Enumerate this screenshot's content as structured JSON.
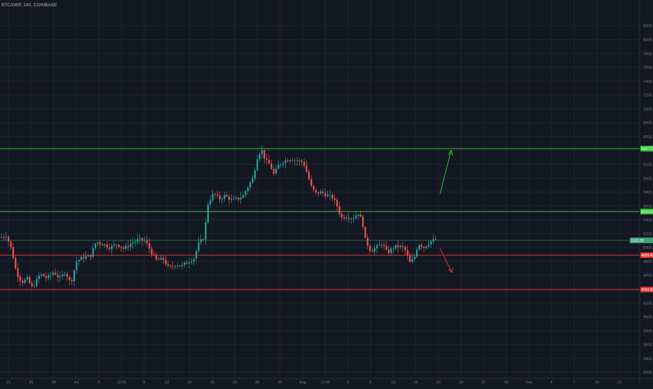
{
  "header": {
    "symbol_label": "BTC/GBP, 240, COINBASE"
  },
  "colors": {
    "background": "#131722",
    "grid": "#1f2433",
    "axis_text": "#787b86",
    "up": "#26a69a",
    "down": "#ef5350",
    "resistance": "#36c936",
    "support": "#e23333",
    "current_price": "#3fa37a"
  },
  "chart_data": {
    "type": "candlestick",
    "title": "BTC/GBP, 240, COINBASE",
    "ylim": [
      3050,
      8450
    ],
    "y_ticks": [
      3200,
      3400,
      3600,
      3800,
      4000,
      4200,
      4400,
      4600,
      4800,
      5000,
      5200,
      5400,
      5600,
      5800,
      6000,
      6200,
      6400,
      6600,
      6800,
      7000,
      7200,
      7400,
      7600,
      7800,
      8000,
      8200
    ],
    "x_ticks": [
      "21",
      "25",
      "28",
      "Jul",
      "5",
      "12:00",
      "9",
      "12",
      "16",
      "19",
      "23",
      "26",
      "30",
      "Aug",
      "12:00",
      "6",
      "9",
      "13",
      "16",
      "20",
      "23",
      "27",
      "30",
      "Sep",
      "4",
      "7",
      "10",
      "13"
    ],
    "grid": true,
    "approx_series": [
      {
        "t": 0,
        "p": 5150
      },
      {
        "t": 8,
        "p": 5180
      },
      {
        "t": 16,
        "p": 4950
      },
      {
        "t": 22,
        "p": 4650
      },
      {
        "t": 30,
        "p": 4500
      },
      {
        "t": 38,
        "p": 4550
      },
      {
        "t": 44,
        "p": 4420
      },
      {
        "t": 50,
        "p": 4500
      },
      {
        "t": 56,
        "p": 4620
      },
      {
        "t": 66,
        "p": 4560
      },
      {
        "t": 76,
        "p": 4650
      },
      {
        "t": 84,
        "p": 4550
      },
      {
        "t": 92,
        "p": 4650
      },
      {
        "t": 100,
        "p": 4480
      },
      {
        "t": 108,
        "p": 4800
      },
      {
        "t": 118,
        "p": 4860
      },
      {
        "t": 128,
        "p": 4880
      },
      {
        "t": 136,
        "p": 5080
      },
      {
        "t": 146,
        "p": 5050
      },
      {
        "t": 156,
        "p": 5000
      },
      {
        "t": 166,
        "p": 5050
      },
      {
        "t": 176,
        "p": 4980
      },
      {
        "t": 186,
        "p": 5060
      },
      {
        "t": 196,
        "p": 5110
      },
      {
        "t": 206,
        "p": 5100
      },
      {
        "t": 214,
        "p": 4950
      },
      {
        "t": 222,
        "p": 4820
      },
      {
        "t": 232,
        "p": 4830
      },
      {
        "t": 240,
        "p": 4700
      },
      {
        "t": 250,
        "p": 4760
      },
      {
        "t": 258,
        "p": 4730
      },
      {
        "t": 268,
        "p": 4800
      },
      {
        "t": 276,
        "p": 4850
      },
      {
        "t": 282,
        "p": 5050
      },
      {
        "t": 290,
        "p": 5150
      },
      {
        "t": 296,
        "p": 5650
      },
      {
        "t": 304,
        "p": 5780
      },
      {
        "t": 312,
        "p": 5700
      },
      {
        "t": 320,
        "p": 5750
      },
      {
        "t": 330,
        "p": 5680
      },
      {
        "t": 338,
        "p": 5700
      },
      {
        "t": 346,
        "p": 5750
      },
      {
        "t": 354,
        "p": 5900
      },
      {
        "t": 360,
        "p": 6000
      },
      {
        "t": 366,
        "p": 6300
      },
      {
        "t": 372,
        "p": 6420
      },
      {
        "t": 378,
        "p": 6250
      },
      {
        "t": 384,
        "p": 6200
      },
      {
        "t": 390,
        "p": 6050
      },
      {
        "t": 396,
        "p": 6180
      },
      {
        "t": 404,
        "p": 6250
      },
      {
        "t": 414,
        "p": 6280
      },
      {
        "t": 424,
        "p": 6250
      },
      {
        "t": 432,
        "p": 6230
      },
      {
        "t": 438,
        "p": 6050
      },
      {
        "t": 444,
        "p": 5850
      },
      {
        "t": 450,
        "p": 5780
      },
      {
        "t": 458,
        "p": 5800
      },
      {
        "t": 466,
        "p": 5750
      },
      {
        "t": 474,
        "p": 5720
      },
      {
        "t": 480,
        "p": 5600
      },
      {
        "t": 486,
        "p": 5430
      },
      {
        "t": 494,
        "p": 5450
      },
      {
        "t": 502,
        "p": 5420
      },
      {
        "t": 510,
        "p": 5500
      },
      {
        "t": 516,
        "p": 5380
      },
      {
        "t": 520,
        "p": 5120
      },
      {
        "t": 528,
        "p": 4950
      },
      {
        "t": 536,
        "p": 5000
      },
      {
        "t": 544,
        "p": 5060
      },
      {
        "t": 552,
        "p": 4920
      },
      {
        "t": 560,
        "p": 5000
      },
      {
        "t": 568,
        "p": 5020
      },
      {
        "t": 576,
        "p": 4990
      },
      {
        "t": 584,
        "p": 4780
      },
      {
        "t": 590,
        "p": 4850
      },
      {
        "t": 596,
        "p": 5060
      },
      {
        "t": 604,
        "p": 5000
      },
      {
        "t": 612,
        "p": 5080
      },
      {
        "t": 622,
        "p": 5120
      }
    ],
    "horizontal_levels": [
      {
        "label": "6427.72",
        "price": 6427.72,
        "kind": "resistance"
      },
      {
        "label": "5519.61",
        "price": 5519.61,
        "kind": "resistance"
      },
      {
        "label": "4889.49",
        "price": 4889.49,
        "kind": "support"
      },
      {
        "label": "4394.06",
        "price": 4394.06,
        "kind": "support"
      }
    ],
    "current_price": {
      "label": "5103.50",
      "price": 5103.5
    },
    "annotations": [
      {
        "type": "arrow",
        "direction": "up",
        "color": "green"
      },
      {
        "type": "arrow",
        "direction": "down",
        "color": "red"
      }
    ]
  }
}
